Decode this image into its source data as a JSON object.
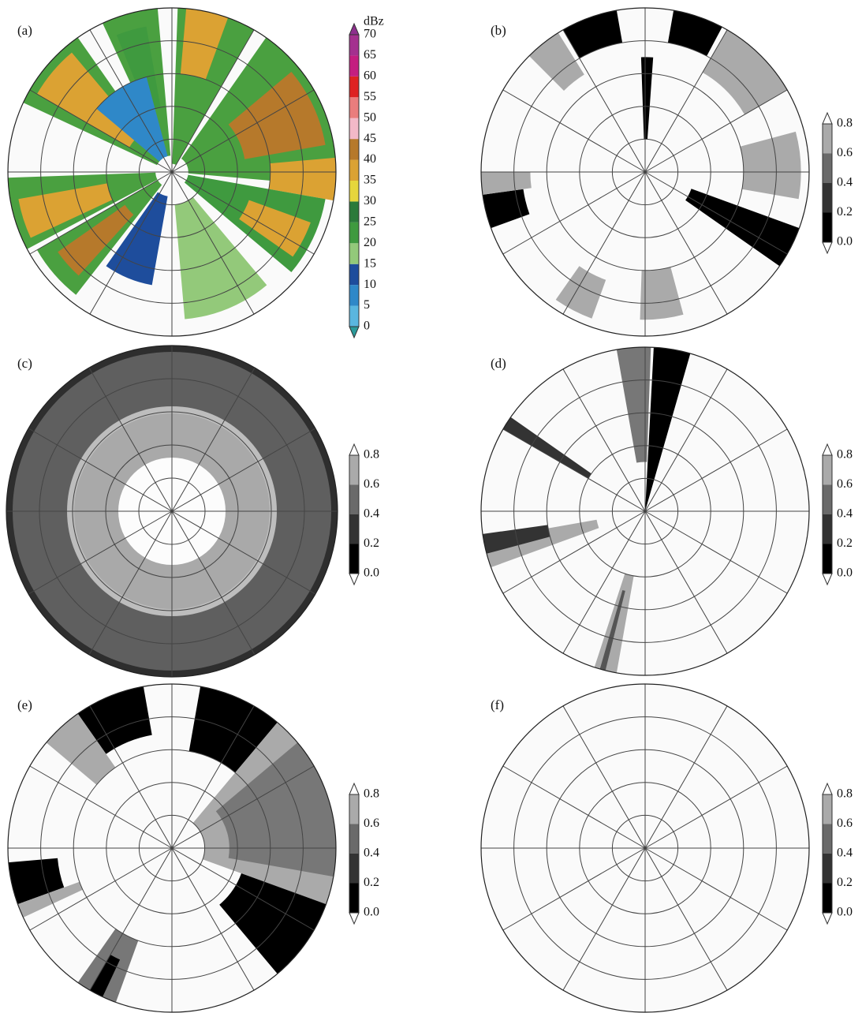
{
  "panels": [
    {
      "label": "(a)",
      "colorbar": {
        "unit": "dBz",
        "ticks": [
          "0",
          "5",
          "10",
          "15",
          "20",
          "25",
          "30",
          "35",
          "40",
          "45",
          "50",
          "55",
          "60",
          "65",
          "70"
        ],
        "colors": [
          "#5ab6df",
          "#2f88c8",
          "#1e4d9c",
          "#93c97a",
          "#3f9a3f",
          "#2b7a3a",
          "#e6d63c",
          "#dba233",
          "#b6792b",
          "#f3b9c8",
          "#ea7d7d",
          "#de2222",
          "#c41e80",
          "#a4308f"
        ],
        "low": "#2a9a9a",
        "high": "#8e2f8e"
      }
    },
    {
      "label": "(b)",
      "colorbar": {
        "ticks": [
          "0.0",
          "0.2",
          "0.4",
          "0.6",
          "0.8"
        ],
        "colors": [
          "#000000",
          "#333333",
          "#6a6a6a",
          "#aaaaaa"
        ],
        "low": "#ffffff",
        "high": "#ffffff"
      }
    },
    {
      "label": "(c)",
      "colorbar": {
        "ticks": [
          "0.0",
          "0.2",
          "0.4",
          "0.6",
          "0.8"
        ],
        "colors": [
          "#000000",
          "#333333",
          "#6a6a6a",
          "#aaaaaa"
        ],
        "low": "#ffffff",
        "high": "#ffffff"
      }
    },
    {
      "label": "(d)",
      "colorbar": {
        "ticks": [
          "0.0",
          "0.2",
          "0.4",
          "0.6",
          "0.8"
        ],
        "colors": [
          "#000000",
          "#333333",
          "#6a6a6a",
          "#aaaaaa"
        ],
        "low": "#ffffff",
        "high": "#ffffff"
      }
    },
    {
      "label": "(e)",
      "colorbar": {
        "ticks": [
          "0.0",
          "0.2",
          "0.4",
          "0.6",
          "0.8"
        ],
        "colors": [
          "#000000",
          "#333333",
          "#6a6a6a",
          "#aaaaaa"
        ],
        "low": "#ffffff",
        "high": "#ffffff"
      }
    },
    {
      "label": "(f)",
      "colorbar": {
        "ticks": [
          "0.0",
          "0.2",
          "0.4",
          "0.6",
          "0.8"
        ],
        "colors": [
          "#000000",
          "#333333",
          "#6a6a6a",
          "#aaaaaa"
        ],
        "low": "#ffffff",
        "high": "#ffffff"
      }
    }
  ]
}
